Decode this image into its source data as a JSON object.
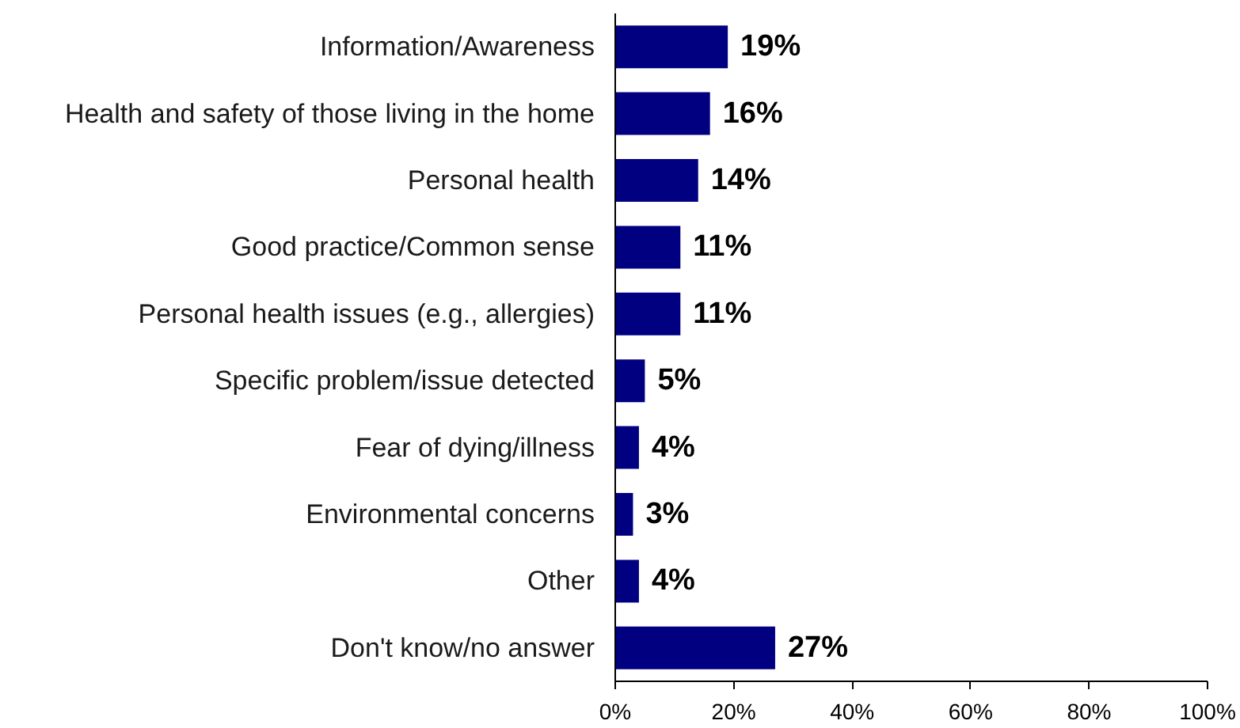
{
  "chart_data": {
    "type": "bar",
    "orientation": "horizontal",
    "categories": [
      "Information/Awareness",
      "Health and safety of those living in the home",
      "Personal health",
      "Good practice/Common sense",
      "Personal health issues (e.g., allergies)",
      "Specific problem/issue detected",
      "Fear of dying/illness",
      "Environmental concerns",
      "Other",
      "Don't know/no answer"
    ],
    "values": [
      19,
      16,
      14,
      11,
      11,
      5,
      4,
      3,
      4,
      27
    ],
    "value_labels": [
      "19%",
      "16%",
      "14%",
      "11%",
      "11%",
      "5%",
      "4%",
      "3%",
      "4%",
      "27%"
    ],
    "color": "#000080",
    "xlim": [
      0,
      100
    ],
    "xticks": [
      {
        "value": 0,
        "label": "0%"
      },
      {
        "value": 20,
        "label": "20%"
      },
      {
        "value": 40,
        "label": "40%"
      },
      {
        "value": 60,
        "label": "60%"
      },
      {
        "value": 80,
        "label": "80%"
      },
      {
        "value": 100,
        "label": "100%"
      }
    ]
  }
}
